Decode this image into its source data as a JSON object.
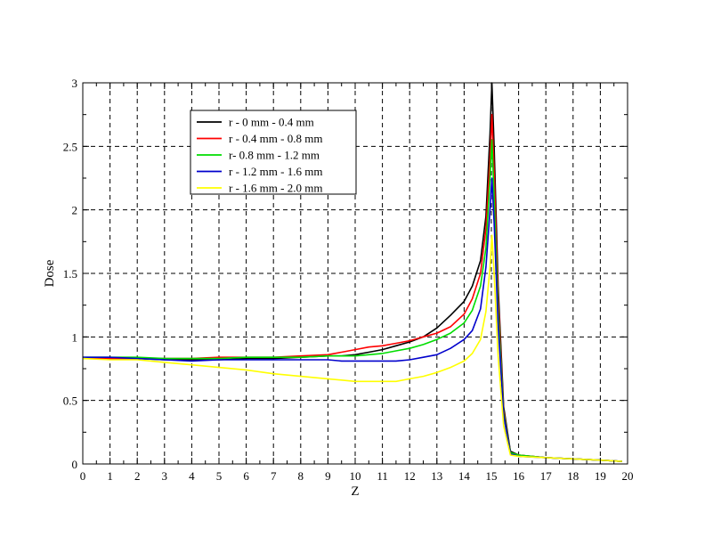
{
  "chart_data": {
    "type": "line",
    "xlabel": "Z",
    "ylabel": "Dose",
    "xlim": [
      0,
      20
    ],
    "ylim": [
      0,
      3
    ],
    "x_ticks": [
      "0",
      "1",
      "2",
      "3",
      "4",
      "5",
      "6",
      "7",
      "8",
      "9",
      "10",
      "11",
      "12",
      "13",
      "14",
      "15",
      "16",
      "17",
      "18",
      "19",
      "20"
    ],
    "y_ticks": [
      "0",
      "0.5",
      "1",
      "1.5",
      "2",
      "2.5",
      "3"
    ],
    "grid": true,
    "legend_position": "top-left",
    "series": [
      {
        "name": "r - 0 mm - 0.4 mm",
        "color": "#000000",
        "x": [
          0,
          1,
          2,
          3,
          4,
          5,
          6,
          7,
          8,
          9,
          9.5,
          10,
          10.5,
          11,
          11.5,
          12,
          12.5,
          13,
          13.5,
          14,
          14.3,
          14.6,
          14.8,
          14.95,
          15.02,
          15.1,
          15.25,
          15.45,
          15.7,
          16,
          17,
          18,
          19,
          19.8
        ],
        "y": [
          0.83,
          0.83,
          0.83,
          0.82,
          0.82,
          0.82,
          0.83,
          0.83,
          0.84,
          0.85,
          0.85,
          0.86,
          0.88,
          0.9,
          0.93,
          0.96,
          1.0,
          1.07,
          1.17,
          1.28,
          1.4,
          1.6,
          1.95,
          2.6,
          3.0,
          2.5,
          1.4,
          0.45,
          0.1,
          0.07,
          0.05,
          0.04,
          0.03,
          0.02
        ]
      },
      {
        "name": "r - 0.4 mm - 0.8 mm",
        "color": "#ff0000",
        "x": [
          0,
          1,
          2,
          3,
          4,
          5,
          6,
          7,
          8,
          9,
          9.5,
          10,
          10.5,
          11,
          11.5,
          12,
          12.5,
          13,
          13.5,
          14,
          14.3,
          14.6,
          14.8,
          14.95,
          15.02,
          15.1,
          15.25,
          15.45,
          15.7,
          16,
          17,
          18,
          19,
          19.8
        ],
        "y": [
          0.83,
          0.83,
          0.83,
          0.83,
          0.83,
          0.84,
          0.84,
          0.84,
          0.85,
          0.86,
          0.88,
          0.9,
          0.92,
          0.93,
          0.95,
          0.97,
          1.0,
          1.03,
          1.08,
          1.18,
          1.3,
          1.5,
          1.85,
          2.4,
          2.75,
          2.3,
          1.3,
          0.42,
          0.09,
          0.07,
          0.05,
          0.04,
          0.03,
          0.02
        ]
      },
      {
        "name": "r- 0.8 mm - 1.2 mm",
        "color": "#00dd00",
        "x": [
          0,
          1,
          2,
          3,
          4,
          5,
          6,
          7,
          8,
          9,
          9.5,
          10,
          10.5,
          11,
          11.5,
          12,
          12.5,
          13,
          13.5,
          14,
          14.3,
          14.6,
          14.8,
          14.95,
          15.02,
          15.1,
          15.25,
          15.45,
          15.7,
          16,
          17,
          18,
          19,
          19.8
        ],
        "y": [
          0.84,
          0.84,
          0.84,
          0.83,
          0.83,
          0.83,
          0.84,
          0.84,
          0.84,
          0.85,
          0.85,
          0.85,
          0.86,
          0.87,
          0.89,
          0.91,
          0.94,
          0.98,
          1.03,
          1.11,
          1.21,
          1.4,
          1.7,
          2.25,
          2.55,
          2.1,
          1.2,
          0.4,
          0.09,
          0.07,
          0.05,
          0.04,
          0.03,
          0.02
        ]
      },
      {
        "name": "r - 1.2 mm - 1.6 mm",
        "color": "#0000cc",
        "x": [
          0,
          1,
          2,
          3,
          4,
          5,
          6,
          7,
          8,
          9,
          9.5,
          10,
          10.5,
          11,
          11.5,
          12,
          12.5,
          13,
          13.5,
          14,
          14.3,
          14.6,
          14.8,
          14.95,
          15.02,
          15.1,
          15.25,
          15.45,
          15.7,
          16,
          17,
          18,
          19,
          19.8
        ],
        "y": [
          0.84,
          0.84,
          0.83,
          0.82,
          0.81,
          0.82,
          0.82,
          0.82,
          0.82,
          0.82,
          0.81,
          0.81,
          0.81,
          0.81,
          0.81,
          0.82,
          0.84,
          0.86,
          0.91,
          0.98,
          1.05,
          1.22,
          1.55,
          2.0,
          2.25,
          1.9,
          1.1,
          0.38,
          0.08,
          0.06,
          0.05,
          0.04,
          0.03,
          0.02
        ]
      },
      {
        "name": "r - 1.6 mm - 2.0 mm",
        "color": "#ffff00",
        "x": [
          0,
          1,
          2,
          3,
          4,
          5,
          6,
          7,
          8,
          9,
          9.5,
          10,
          10.5,
          11,
          11.5,
          12,
          12.5,
          13,
          13.5,
          14,
          14.3,
          14.6,
          14.8,
          14.95,
          15.02,
          15.1,
          15.25,
          15.45,
          15.7,
          16,
          17,
          18,
          19,
          19.8
        ],
        "y": [
          0.83,
          0.82,
          0.82,
          0.8,
          0.78,
          0.76,
          0.74,
          0.71,
          0.69,
          0.67,
          0.66,
          0.65,
          0.65,
          0.65,
          0.65,
          0.67,
          0.69,
          0.72,
          0.76,
          0.81,
          0.87,
          0.98,
          1.2,
          1.55,
          1.8,
          1.5,
          0.85,
          0.3,
          0.07,
          0.06,
          0.05,
          0.04,
          0.03,
          0.02
        ]
      }
    ]
  }
}
